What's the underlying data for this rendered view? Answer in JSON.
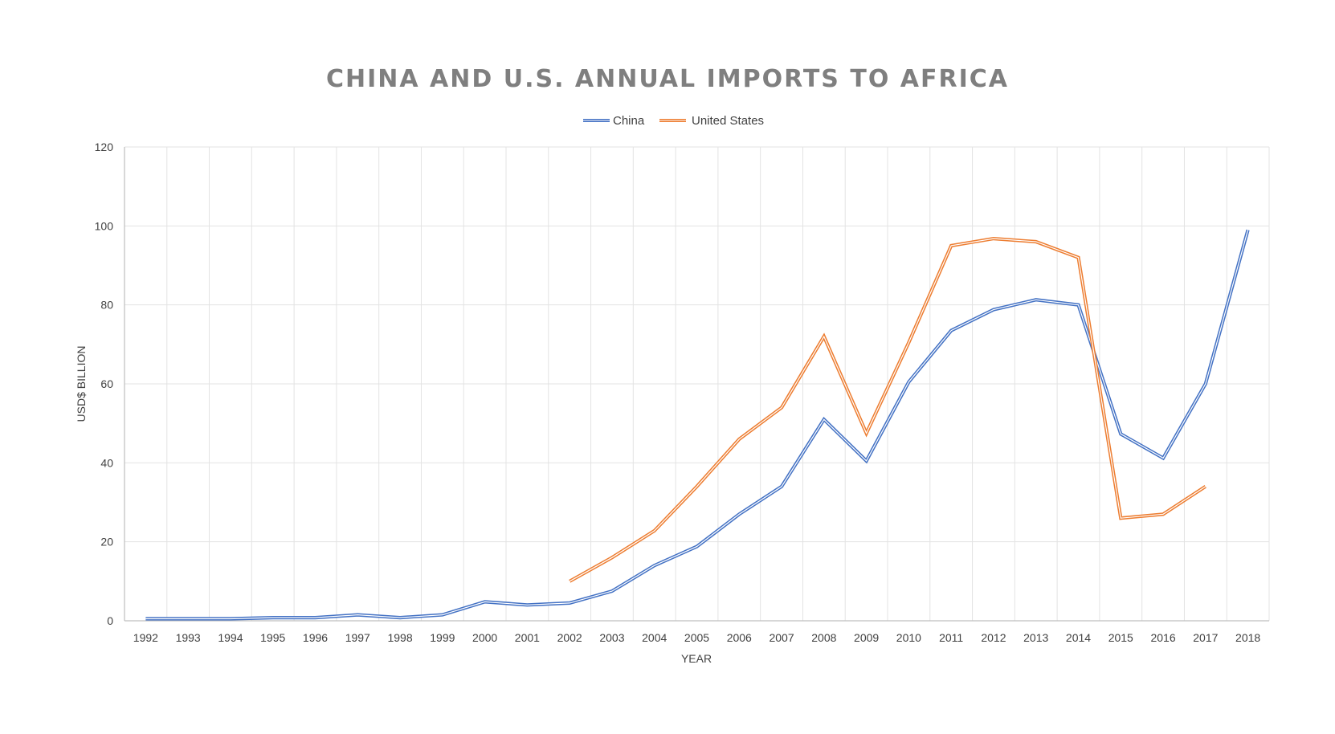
{
  "chart_data": {
    "type": "line",
    "title": "CHINA AND U.S. ANNUAL IMPORTS TO AFRICA",
    "xlabel": "YEAR",
    "ylabel": "USD$ BILLION",
    "categories": [
      "1992",
      "1993",
      "1994",
      "1995",
      "1996",
      "1997",
      "1998",
      "1999",
      "2000",
      "2001",
      "2002",
      "2003",
      "2004",
      "2005",
      "2006",
      "2007",
      "2008",
      "2009",
      "2010",
      "2011",
      "2012",
      "2013",
      "2014",
      "2015",
      "2016",
      "2017",
      "2018"
    ],
    "ylim": [
      0,
      120
    ],
    "yticks": [
      0,
      20,
      40,
      60,
      80,
      100,
      120
    ],
    "grid": true,
    "legend_position": "top",
    "series": [
      {
        "name": "China",
        "color": "#4472C4",
        "values": [
          0.5,
          0.5,
          0.5,
          0.8,
          0.8,
          1.5,
          0.8,
          1.5,
          4.8,
          4.0,
          4.5,
          7.5,
          14,
          18.8,
          27,
          34,
          51,
          40.5,
          60.5,
          73.5,
          78.8,
          81.3,
          80,
          47.3,
          41.2,
          60,
          99
        ]
      },
      {
        "name": "United States",
        "color": "#ED7D31",
        "values": [
          null,
          null,
          null,
          null,
          null,
          null,
          null,
          null,
          null,
          null,
          10,
          16,
          22.8,
          34,
          46,
          54,
          72,
          47.5,
          70.5,
          95,
          96.8,
          96,
          92,
          26,
          27,
          34,
          null
        ]
      }
    ]
  }
}
